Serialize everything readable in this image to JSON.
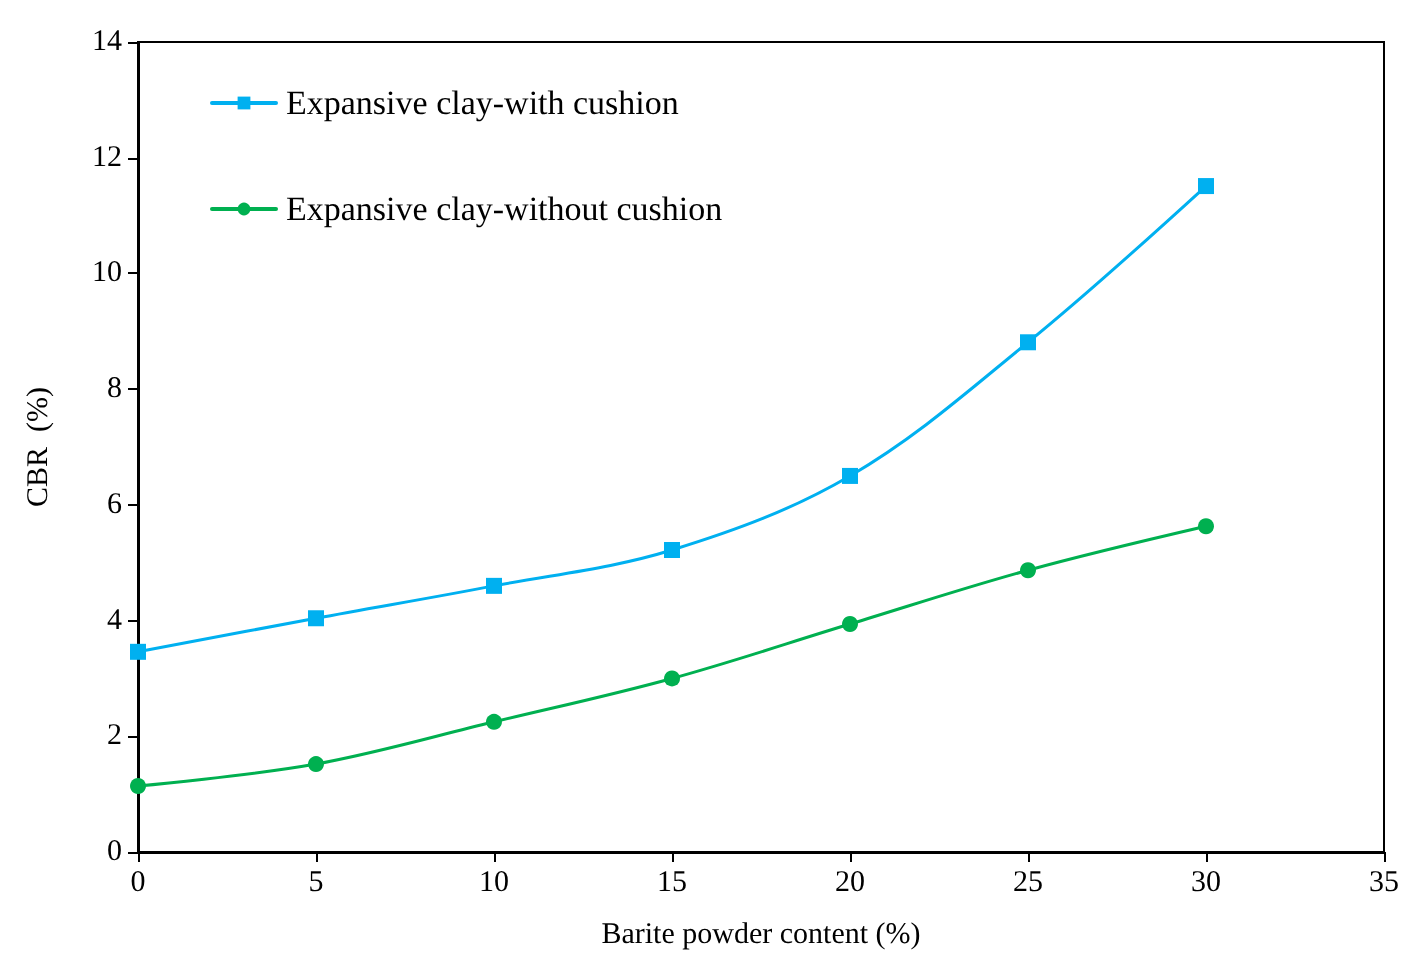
{
  "chart_data": {
    "type": "line",
    "xlabel": "Barite powder content (%)",
    "ylabel": "CBR  (%)",
    "x": [
      0,
      5,
      10,
      15,
      20,
      25,
      30
    ],
    "series": [
      {
        "name": "Expansive clay-with cushion",
        "color": "#00b0f0",
        "marker": "square",
        "values": [
          3.46,
          4.04,
          4.6,
          5.22,
          6.5,
          8.81,
          11.51
        ]
      },
      {
        "name": "Expansive clay-without cushion",
        "color": "#00b050",
        "marker": "circle",
        "values": [
          1.14,
          1.52,
          2.25,
          3.0,
          3.94,
          4.87,
          5.63
        ]
      }
    ],
    "xlim": [
      0,
      35
    ],
    "xticks": [
      0,
      5,
      10,
      15,
      20,
      25,
      30,
      35
    ],
    "ylim": [
      0,
      14
    ],
    "yticks": [
      0,
      2,
      4,
      6,
      8,
      10,
      12,
      14
    ],
    "grid": false,
    "legend": "top left",
    "line_style": "solid"
  }
}
